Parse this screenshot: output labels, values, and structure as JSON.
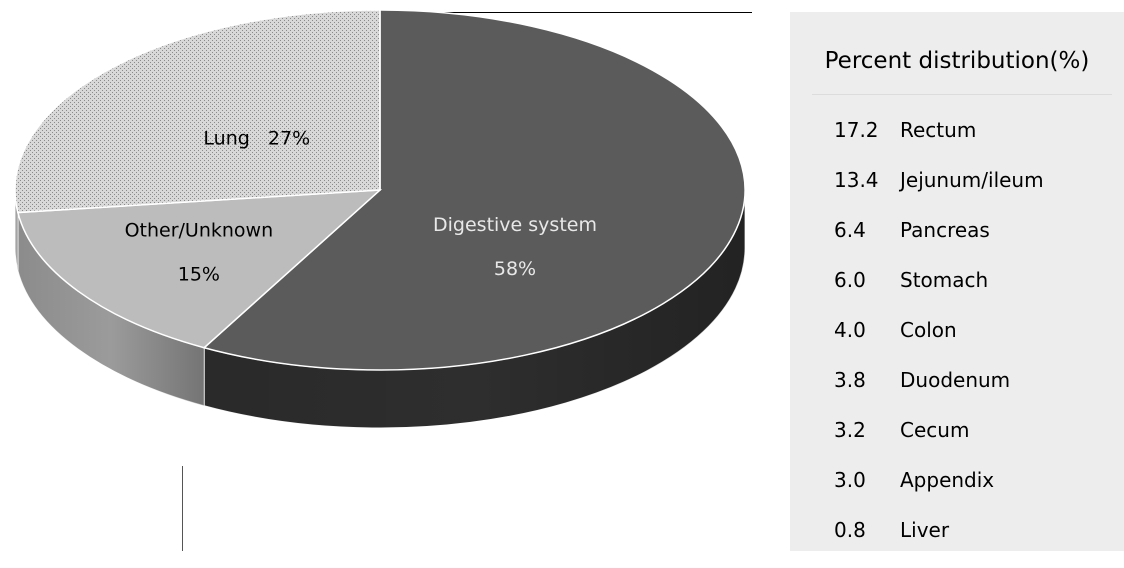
{
  "chart_data": {
    "type": "pie",
    "slices": [
      {
        "label": "Digestive system",
        "pct_text": "58%",
        "value": 58,
        "top_color": "#5b5b5b",
        "side_color": "#2e2e2e",
        "text_color": "#e8e8e8"
      },
      {
        "label": "Other/Unknown",
        "pct_text": "15%",
        "value": 15,
        "top_color": "#bcbcbc",
        "side_color": "#9b9b9b",
        "text_color": "#000000"
      },
      {
        "label": "Lung",
        "pct_text": "27%",
        "value": 27,
        "top_color": "#d5d5d5",
        "side_color": "#a9a9a9",
        "text_color": "#000000"
      }
    ],
    "breakdown_title": "Percent distribution(%)",
    "breakdown": [
      {
        "value": "17.2",
        "site": "Rectum"
      },
      {
        "value": "13.4",
        "site": "Jejunum/ileum"
      },
      {
        "value": "6.4",
        "site": "Pancreas"
      },
      {
        "value": "6.0",
        "site": "Stomach"
      },
      {
        "value": "4.0",
        "site": "Colon"
      },
      {
        "value": "3.8",
        "site": "Duodenum"
      },
      {
        "value": "3.2",
        "site": "Cecum"
      },
      {
        "value": "3.0",
        "site": "Appendix"
      },
      {
        "value": "0.8",
        "site": "Liver"
      }
    ]
  },
  "colors": {
    "legend_background": "#ededed"
  }
}
